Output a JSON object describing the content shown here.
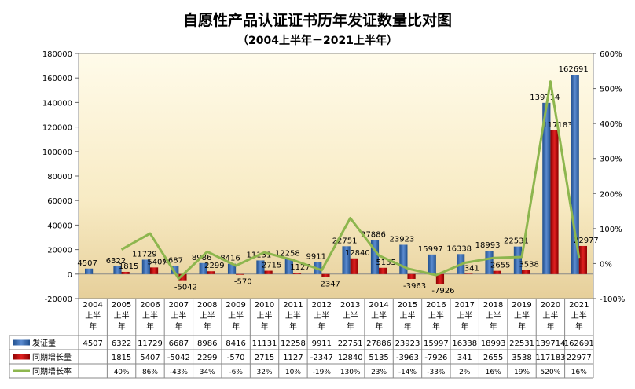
{
  "chart_data": {
    "type": "bar",
    "title": "自愿性产品认证证书历年发证数量比对图",
    "subtitle": "（2004上半年－2021上半年）",
    "categories": [
      "2004",
      "2005",
      "2006",
      "2007",
      "2008",
      "2009",
      "2010",
      "2011",
      "2012",
      "2013",
      "2014",
      "2015",
      "2016",
      "2017",
      "2018",
      "2019",
      "2020",
      "2021"
    ],
    "category_suffix": [
      "上半",
      "年"
    ],
    "series": [
      {
        "name": "发证量",
        "type": "bar",
        "axis": "left",
        "color": "#2E5F9E",
        "values": [
          4507,
          6322,
          11729,
          6687,
          8986,
          8416,
          11131,
          12258,
          9911,
          22751,
          27886,
          23923,
          15997,
          16338,
          18993,
          22531,
          139714,
          162691
        ]
      },
      {
        "name": "同期增长量",
        "type": "bar",
        "axis": "left",
        "color": "#C00000",
        "values": [
          null,
          1815,
          5407,
          -5042,
          2299,
          -570,
          2715,
          1127,
          -2347,
          12840,
          5135,
          -3963,
          -7926,
          341,
          2655,
          3538,
          117183,
          22977
        ]
      },
      {
        "name": "同期增长率",
        "type": "line",
        "axis": "right",
        "color": "#8DB64E",
        "values": [
          null,
          40,
          86,
          -43,
          34,
          -6,
          32,
          10,
          -19,
          130,
          23,
          -14,
          -33,
          2,
          16,
          19,
          520,
          16
        ],
        "labels": [
          "",
          "40%",
          "86%",
          "-43%",
          "34%",
          "-6%",
          "32%",
          "10%",
          "-19%",
          "130%",
          "23%",
          "-14%",
          "-33%",
          "2%",
          "16%",
          "19%",
          "520%",
          "16%"
        ]
      }
    ],
    "ylim": [
      -20000,
      180000
    ],
    "yticks": [
      "-20000",
      "0",
      "20000",
      "40000",
      "60000",
      "80000",
      "100000",
      "120000",
      "140000",
      "160000",
      "180000"
    ],
    "y2lim": [
      -100,
      600
    ],
    "y2ticks": [
      "-100%",
      "0%",
      "100%",
      "200%",
      "300%",
      "400%",
      "500%",
      "600%"
    ],
    "legend": "data-table"
  }
}
